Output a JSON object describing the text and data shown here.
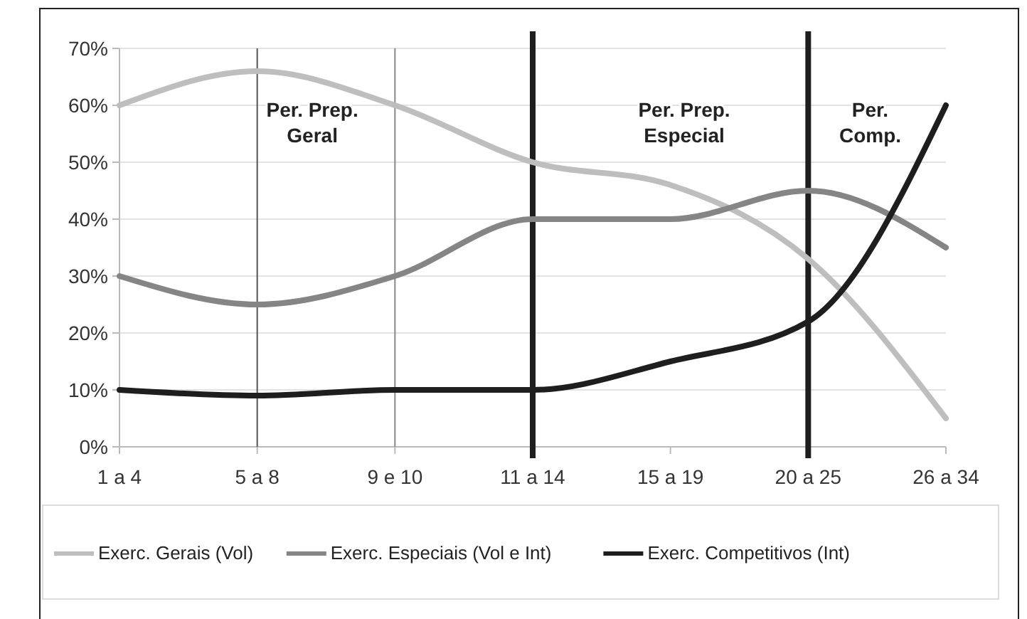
{
  "chart_data": {
    "type": "line",
    "categories": [
      "1 a 4",
      "5 a 8",
      "9 e 10",
      "11 a 14",
      "15 a 19",
      "20 a 25",
      "26 a 34"
    ],
    "series": [
      {
        "name": "Exerc. Gerais (Vol)",
        "color": "#bebebe",
        "values": [
          60,
          66,
          60,
          50,
          46,
          33,
          5
        ]
      },
      {
        "name": "Exerc. Especiais (Vol e Int)",
        "color": "#858585",
        "values": [
          30,
          25,
          30,
          40,
          40,
          45,
          35
        ]
      },
      {
        "name": "Exerc. Competitivos (Int)",
        "color": "#1e1e1e",
        "values": [
          10,
          9,
          10,
          10,
          15,
          22,
          60
        ]
      }
    ],
    "ylim": [
      0,
      70
    ],
    "yticks": [
      {
        "value": 0,
        "label": "0%"
      },
      {
        "value": 10,
        "label": "10%"
      },
      {
        "value": 20,
        "label": "20%"
      },
      {
        "value": 30,
        "label": "30%"
      },
      {
        "value": 40,
        "label": "40%"
      },
      {
        "value": 50,
        "label": "50%"
      },
      {
        "value": 60,
        "label": "60%"
      },
      {
        "value": 70,
        "label": "70%"
      }
    ],
    "grid": "y",
    "legend": "bottom",
    "marker": "none",
    "line_style": "solid",
    "ref_lines": [
      {
        "axis": "x",
        "value": "5 a 8",
        "color": "#555555"
      },
      {
        "axis": "x",
        "value": "9 e 10",
        "color": "#888888"
      },
      {
        "axis": "x",
        "value": "11 a 14",
        "color": "#1e1e1e"
      },
      {
        "axis": "x",
        "value": "20 a 25",
        "color": "#1e1e1e"
      }
    ],
    "annotations": [
      "Per. Prep. Geral",
      "Per. Prep. Especial",
      "Per. Comp."
    ]
  }
}
